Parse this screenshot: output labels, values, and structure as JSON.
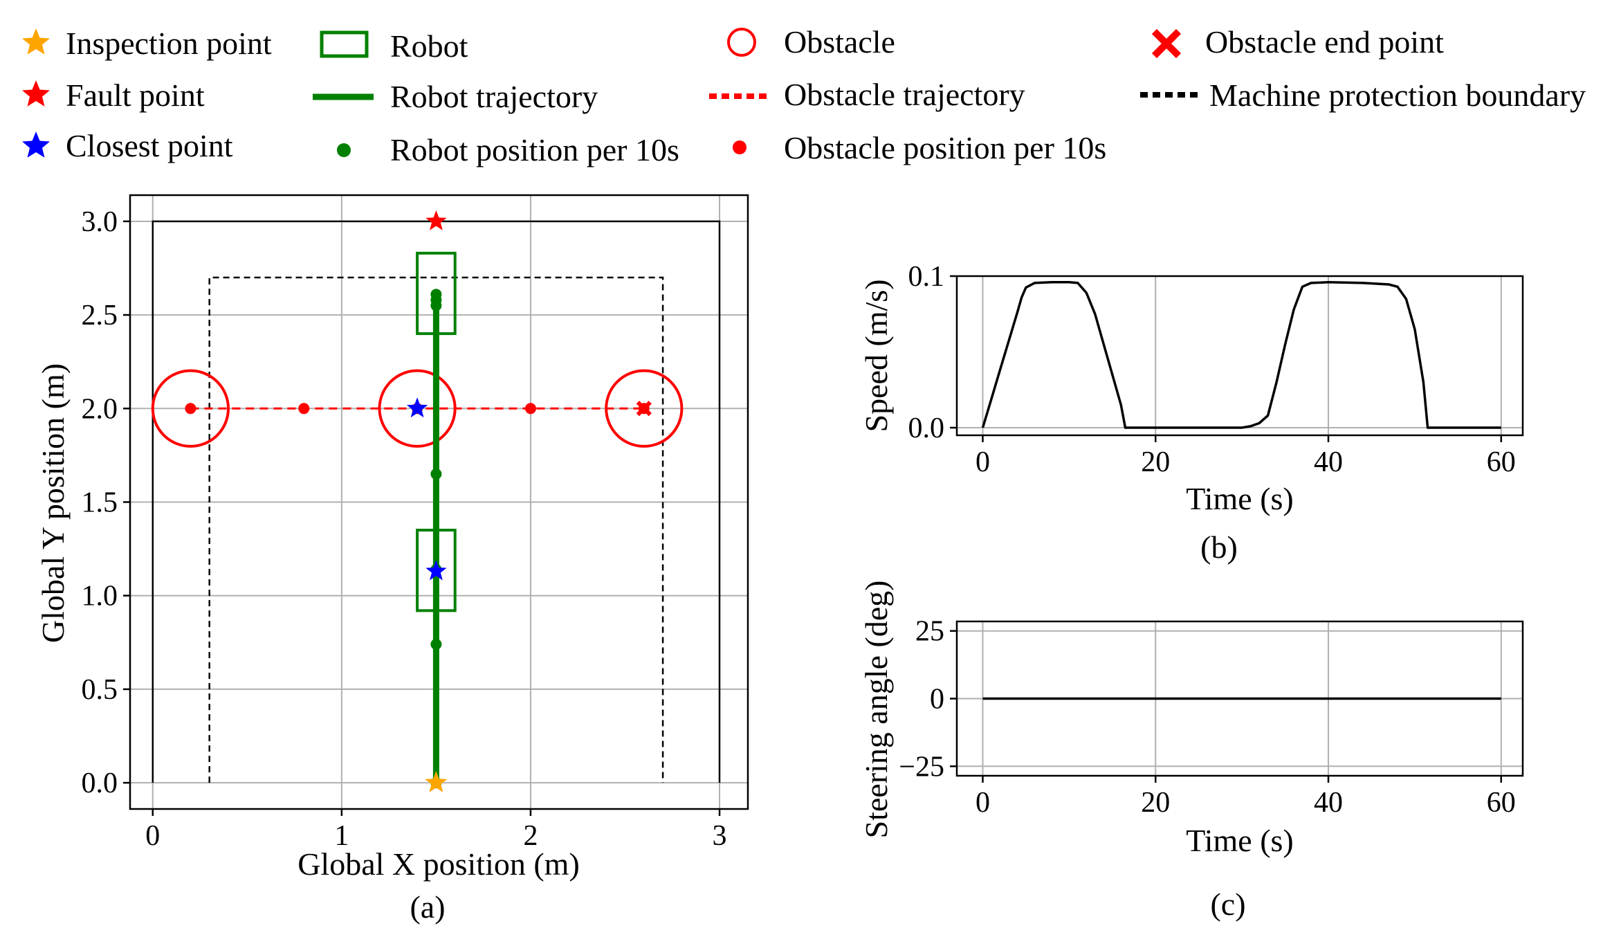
{
  "legend": [
    {
      "key": "inspection",
      "label": "Inspection point",
      "symbol": "star",
      "color": "#FFA500"
    },
    {
      "key": "fault",
      "label": "Fault point",
      "symbol": "star",
      "color": "#FF0000"
    },
    {
      "key": "closest",
      "label": "Closest point",
      "symbol": "star",
      "color": "#0000FF"
    },
    {
      "key": "robot",
      "label": "Robot",
      "symbol": "rect",
      "color": "#008000"
    },
    {
      "key": "robot_traj",
      "label": "Robot trajectory",
      "symbol": "line",
      "color": "#008000"
    },
    {
      "key": "robot_pos",
      "label": "Robot position per 10s",
      "symbol": "dot",
      "color": "#008000"
    },
    {
      "key": "obstacle",
      "label": "Obstacle",
      "symbol": "circle",
      "color": "#FF0000"
    },
    {
      "key": "obstacle_traj",
      "label": "Obstacle trajectory",
      "symbol": "dashed",
      "color": "#FF0000"
    },
    {
      "key": "obstacle_pos",
      "label": "Obstacle position per 10s",
      "symbol": "dot",
      "color": "#FF0000"
    },
    {
      "key": "obstacle_end",
      "label": "Obstacle end point",
      "symbol": "x",
      "color": "#FF0000"
    },
    {
      "key": "boundary",
      "label": "Machine protection boundary",
      "symbol": "dashed",
      "color": "#000000"
    }
  ],
  "chart_data": [
    {
      "id": "a",
      "type": "scatter",
      "caption": "(a)",
      "xlabel": "Global X position (m)",
      "ylabel": "Global Y position (m)",
      "xlim": [
        -0.12,
        3.15
      ],
      "ylim": [
        -0.14,
        3.14
      ],
      "xticks": [
        0,
        1,
        2,
        3
      ],
      "xtick_labels": [
        "0",
        "1",
        "2",
        "3"
      ],
      "yticks": [
        0.0,
        0.5,
        1.0,
        1.5,
        2.0,
        2.5,
        3.0
      ],
      "ytick_labels": [
        "0.0",
        "0.5",
        "1.0",
        "1.5",
        "2.0",
        "2.5",
        "3.0"
      ],
      "grid": true,
      "workspace_boundary": {
        "x": [
          0,
          0,
          3,
          3
        ],
        "y": [
          0,
          3,
          3,
          0
        ]
      },
      "protection_boundary": {
        "x": [
          0.3,
          0.3,
          2.7,
          2.7
        ],
        "y": [
          0,
          2.7,
          2.7,
          0
        ]
      },
      "robot_trajectory": {
        "x": [
          1.5,
          1.5
        ],
        "y": [
          0.0,
          2.58
        ]
      },
      "robot_positions": {
        "x": [
          1.5,
          1.5,
          1.5,
          1.5,
          1.5,
          1.5,
          1.5
        ],
        "y": [
          0.0,
          0.74,
          1.14,
          1.65,
          2.55,
          2.58,
          2.61
        ]
      },
      "robot_boxes": [
        {
          "x": [
            1.4,
            1.6
          ],
          "y": [
            0.92,
            1.35
          ]
        },
        {
          "x": [
            1.4,
            1.6
          ],
          "y": [
            2.4,
            2.83
          ]
        }
      ],
      "obstacle_trajectory": {
        "x": [
          0.2,
          2.6
        ],
        "y": [
          2.0,
          2.0
        ]
      },
      "obstacle_positions": {
        "x": [
          0.2,
          0.8,
          1.4,
          2.0,
          2.6
        ],
        "y": [
          2.0,
          2.0,
          2.0,
          2.0,
          2.0
        ]
      },
      "obstacle_circles": [
        {
          "x": 0.2,
          "y": 2.0,
          "r": 0.2
        },
        {
          "x": 1.4,
          "y": 2.0,
          "r": 0.2
        },
        {
          "x": 2.6,
          "y": 2.0,
          "r": 0.2
        }
      ],
      "obstacle_end": {
        "x": 2.6,
        "y": 2.0
      },
      "inspection_point": {
        "x": 1.5,
        "y": 0.0
      },
      "fault_point": {
        "x": 1.5,
        "y": 3.0
      },
      "closest_points": [
        {
          "x": 1.4,
          "y": 2.0
        },
        {
          "x": 1.5,
          "y": 1.13
        }
      ]
    },
    {
      "id": "b",
      "type": "line",
      "caption": "(b)",
      "xlabel": "Time (s)",
      "ylabel": "Speed (m/s)",
      "xlim": [
        -3,
        62.5
      ],
      "ylim": [
        -0.005,
        0.1
      ],
      "xticks": [
        0,
        20,
        40,
        60
      ],
      "xtick_labels": [
        "0",
        "20",
        "40",
        "60"
      ],
      "yticks": [
        0.0,
        0.1
      ],
      "ytick_labels": [
        "0.0",
        "0.1"
      ],
      "grid": true,
      "series": [
        {
          "name": "Speed",
          "x": [
            0,
            1,
            2,
            3,
            4,
            4.5,
            5,
            6,
            8,
            10,
            11,
            12,
            13,
            14,
            15,
            16,
            16.5,
            20,
            25,
            30,
            31,
            32,
            33,
            34,
            35,
            36,
            37,
            38,
            40,
            44,
            47,
            48,
            49,
            50,
            51,
            51.5,
            55,
            60
          ],
          "y": [
            0,
            0.019,
            0.038,
            0.057,
            0.076,
            0.086,
            0.0925,
            0.0955,
            0.096,
            0.096,
            0.0955,
            0.089,
            0.075,
            0.055,
            0.035,
            0.015,
            0.0,
            0.0,
            0.0,
            0.0,
            0.001,
            0.003,
            0.008,
            0.03,
            0.055,
            0.078,
            0.093,
            0.0955,
            0.096,
            0.0955,
            0.0945,
            0.093,
            0.085,
            0.065,
            0.03,
            0.0,
            0.0,
            0.0
          ]
        }
      ]
    },
    {
      "id": "c",
      "type": "line",
      "caption": "(c)",
      "xlabel": "Time (s)",
      "ylabel": "Steering angle (deg)",
      "xlim": [
        -3,
        62.5
      ],
      "ylim": [
        -28.5,
        28.5
      ],
      "xticks": [
        0,
        20,
        40,
        60
      ],
      "xtick_labels": [
        "0",
        "20",
        "40",
        "60"
      ],
      "yticks": [
        -25,
        0,
        25
      ],
      "ytick_labels": [
        "−25",
        "0",
        "25"
      ],
      "grid": true,
      "series": [
        {
          "name": "Steering angle",
          "x": [
            0,
            60
          ],
          "y": [
            0,
            0
          ]
        }
      ]
    }
  ]
}
